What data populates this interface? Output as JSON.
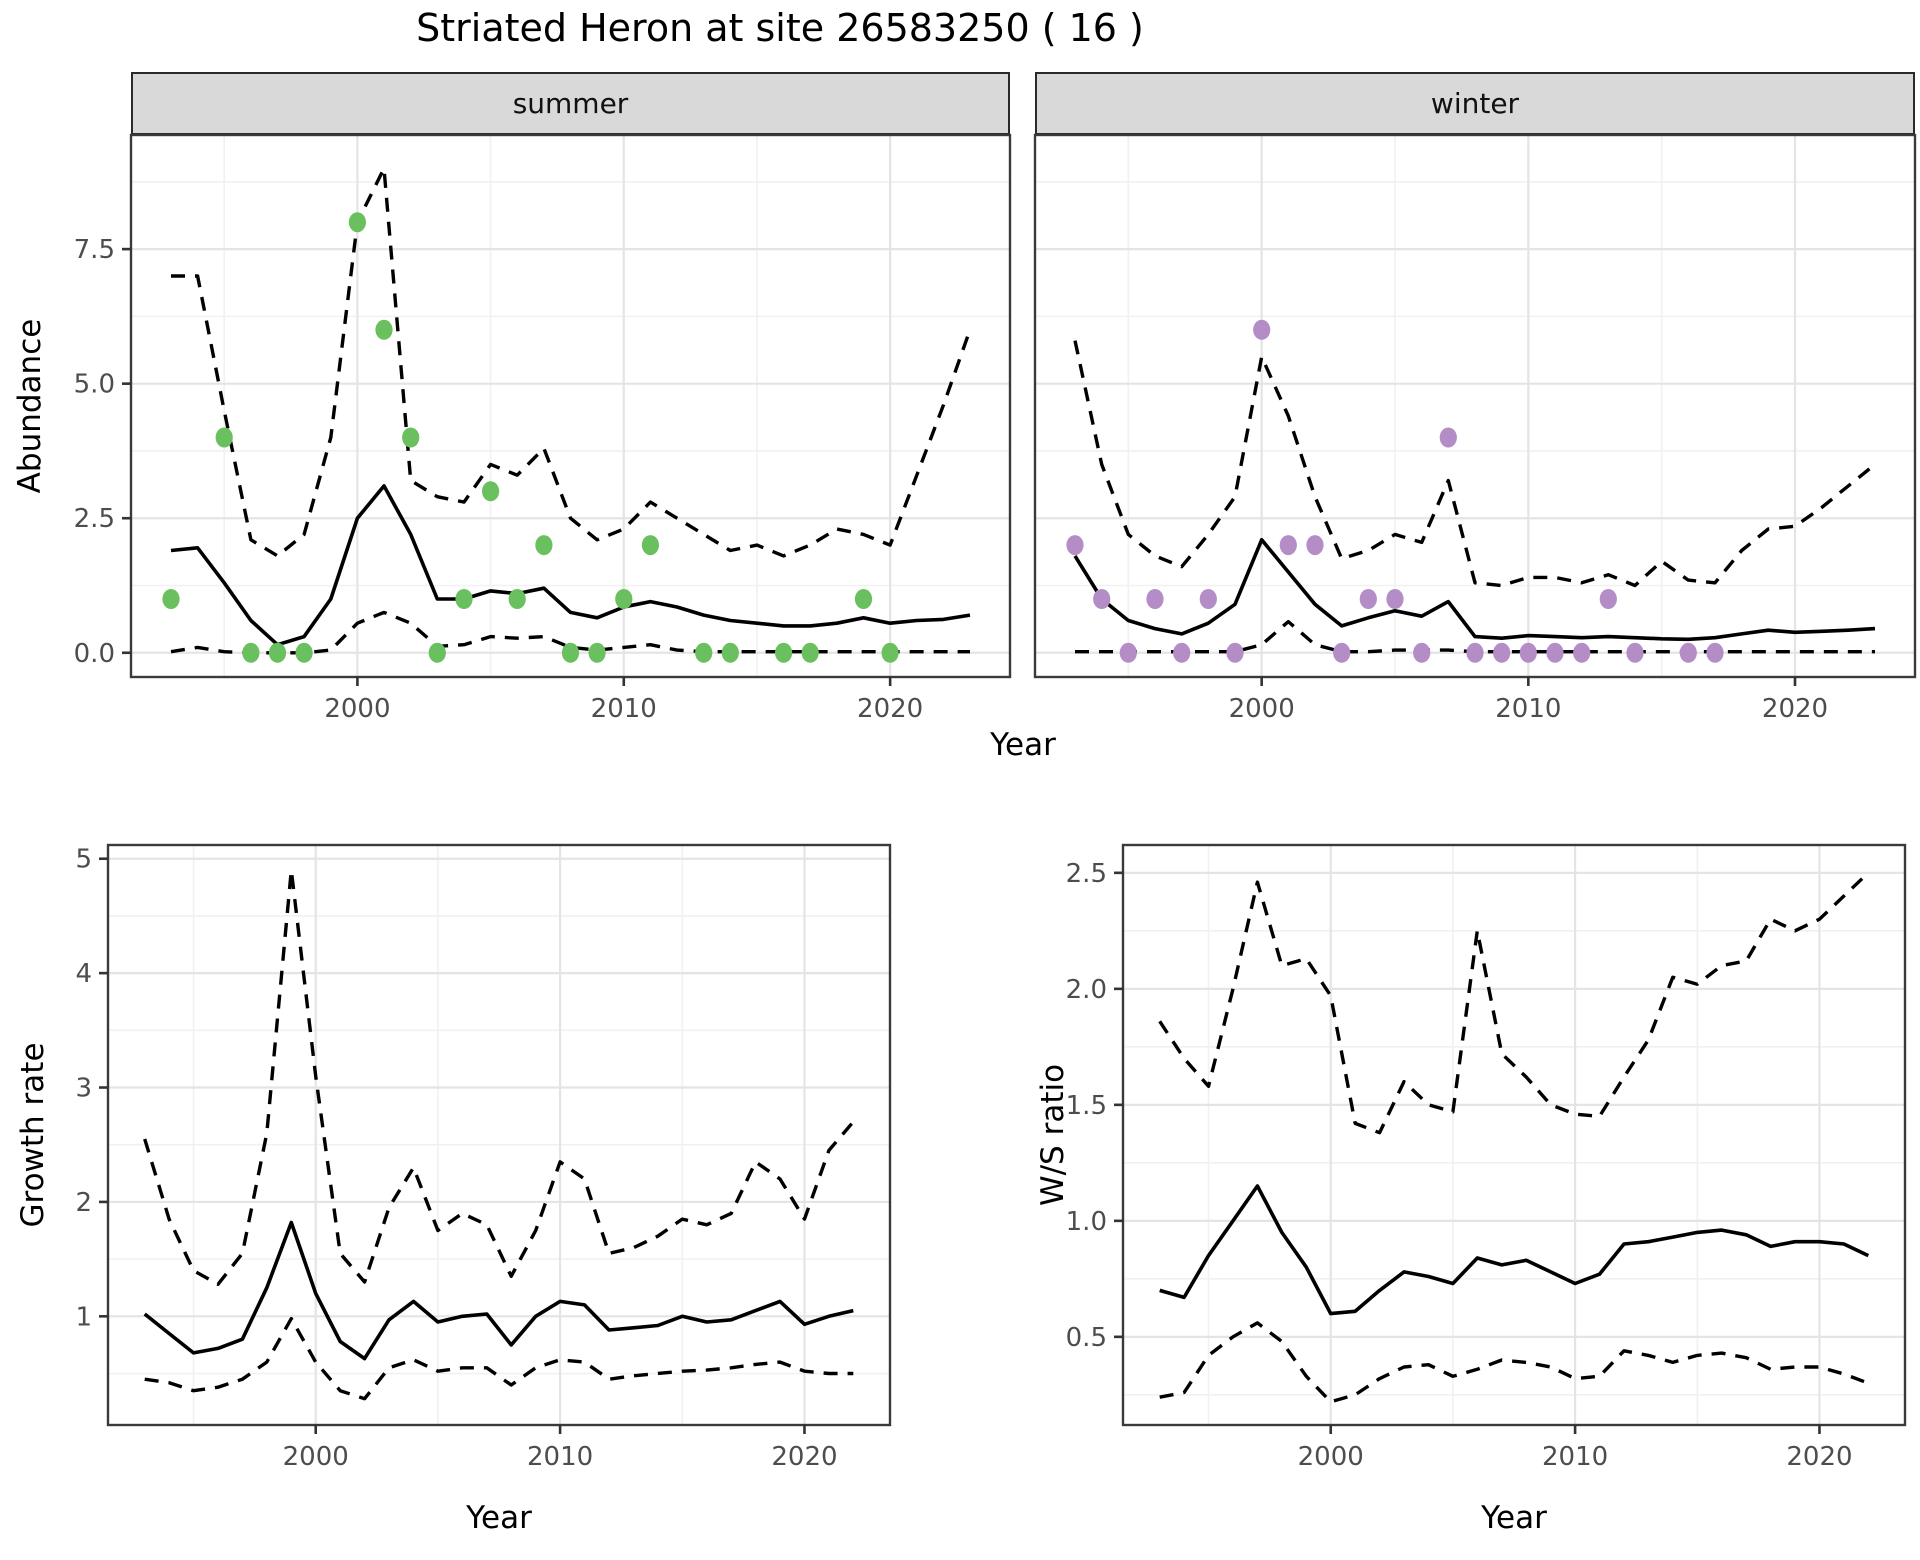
{
  "title": "Striated Heron at site 26583250 ( 16 )",
  "facets": [
    {
      "label": "summer"
    },
    {
      "label": "winter"
    }
  ],
  "axes": {
    "abundance": "Abundance",
    "year": "Year",
    "growth": "Growth rate",
    "ws": "W/S ratio"
  },
  "colors": {
    "summer_point": "#6abf5e",
    "winter_point": "#b48cc6",
    "line": "#000000",
    "strip_bg": "#d9d9d9",
    "panel_bg": "#ffffff",
    "grid_major": "#e4e4e4",
    "grid_minor": "#f1f1f1",
    "panel_border": "#3a3a3a",
    "tick_mark": "#333333",
    "tick_text": "#4d4d4d"
  },
  "chart_data": [
    {
      "id": "abundance_summer",
      "type": "line",
      "facet": "summer",
      "ylabel": "Abundance",
      "xlabel": "Year",
      "x": [
        1993,
        1994,
        1995,
        1996,
        1997,
        1998,
        1999,
        2000,
        2001,
        2002,
        2003,
        2004,
        2005,
        2006,
        2007,
        2008,
        2009,
        2010,
        2011,
        2012,
        2013,
        2014,
        2015,
        2016,
        2017,
        2018,
        2019,
        2020,
        2021,
        2022,
        2023
      ],
      "observed": [
        1,
        null,
        4,
        0,
        0,
        0,
        null,
        8,
        6,
        4,
        0,
        1,
        3,
        1,
        2,
        0,
        0,
        1,
        2,
        null,
        0,
        0,
        null,
        0,
        0,
        null,
        1,
        0,
        null,
        null,
        null
      ],
      "median": [
        1.9,
        1.95,
        1.3,
        0.6,
        0.15,
        0.3,
        1.0,
        2.5,
        3.1,
        2.2,
        1.0,
        1.0,
        1.15,
        1.1,
        1.2,
        0.75,
        0.65,
        0.85,
        0.95,
        0.85,
        0.7,
        0.6,
        0.55,
        0.5,
        0.5,
        0.55,
        0.65,
        0.55,
        0.6,
        0.62,
        0.7
      ],
      "ci_upper": [
        7.0,
        7.0,
        4.5,
        2.1,
        1.8,
        2.2,
        4.0,
        8.0,
        9.0,
        3.2,
        2.9,
        2.8,
        3.5,
        3.3,
        3.8,
        2.5,
        2.1,
        2.3,
        2.8,
        2.5,
        2.2,
        1.9,
        2.0,
        1.8,
        2.0,
        2.3,
        2.2,
        2.0,
        3.3,
        4.6,
        6.0
      ],
      "ci_lower": [
        0.02,
        0.1,
        0.02,
        0.0,
        0.0,
        0.0,
        0.05,
        0.55,
        0.75,
        0.55,
        0.12,
        0.15,
        0.3,
        0.27,
        0.3,
        0.1,
        0.05,
        0.1,
        0.15,
        0.05,
        0.02,
        0.02,
        0.02,
        0.02,
        0.02,
        0.02,
        0.02,
        0.02,
        0.02,
        0.02,
        0.02
      ],
      "xlim": [
        1991.5,
        2024.5
      ],
      "ylim": [
        -0.45,
        9.62
      ],
      "xtick_values": [
        2000,
        2010,
        2020
      ],
      "xtick_labels": [
        "2000",
        "2010",
        "2020"
      ],
      "xticks_minor": [
        1995,
        2005,
        2015
      ],
      "ytick_values": [
        0,
        2.5,
        5,
        7.5
      ],
      "ytick_labels": [
        "0.0",
        "2.5",
        "5.0",
        "7.5"
      ],
      "yticks_minor": [
        1.25,
        3.75,
        6.25,
        8.75
      ],
      "show_yaxis": true,
      "point_color": "#6abf5e"
    },
    {
      "id": "abundance_winter",
      "type": "line",
      "facet": "winter",
      "ylabel": "Abundance",
      "xlabel": "Year",
      "x": [
        1993,
        1994,
        1995,
        1996,
        1997,
        1998,
        1999,
        2000,
        2001,
        2002,
        2003,
        2004,
        2005,
        2006,
        2007,
        2008,
        2009,
        2010,
        2011,
        2012,
        2013,
        2014,
        2015,
        2016,
        2017,
        2018,
        2019,
        2020,
        2021,
        2022,
        2023
      ],
      "observed": [
        2,
        1,
        0,
        1,
        0,
        1,
        0,
        6,
        2,
        2,
        0,
        1,
        1,
        0,
        4,
        0,
        0,
        0,
        0,
        0,
        1,
        0,
        null,
        0,
        0,
        null,
        null,
        null,
        null,
        null,
        null
      ],
      "median": [
        1.8,
        1.0,
        0.6,
        0.45,
        0.35,
        0.55,
        0.9,
        2.1,
        1.5,
        0.9,
        0.5,
        0.65,
        0.78,
        0.68,
        0.95,
        0.3,
        0.27,
        0.32,
        0.3,
        0.28,
        0.3,
        0.28,
        0.26,
        0.25,
        0.28,
        0.35,
        0.42,
        0.38,
        0.4,
        0.42,
        0.45
      ],
      "ci_upper": [
        5.8,
        3.5,
        2.2,
        1.8,
        1.6,
        2.2,
        2.9,
        5.5,
        4.4,
        2.9,
        1.75,
        1.9,
        2.2,
        2.05,
        3.2,
        1.3,
        1.25,
        1.4,
        1.4,
        1.3,
        1.45,
        1.25,
        1.7,
        1.35,
        1.3,
        1.9,
        2.3,
        2.35,
        2.7,
        3.1,
        3.5
      ],
      "ci_lower": [
        0.02,
        0.02,
        0.02,
        0.02,
        0.02,
        0.02,
        0.02,
        0.15,
        0.58,
        0.15,
        0.02,
        0.02,
        0.05,
        0.05,
        0.05,
        0.02,
        0.02,
        0.02,
        0.02,
        0.02,
        0.02,
        0.02,
        0.02,
        0.02,
        0.02,
        0.02,
        0.02,
        0.02,
        0.02,
        0.02,
        0.02
      ],
      "xlim": [
        1991.5,
        2024.5
      ],
      "ylim": [
        -0.45,
        9.62
      ],
      "xtick_values": [
        2000,
        2010,
        2020
      ],
      "xtick_labels": [
        "2000",
        "2010",
        "2020"
      ],
      "xticks_minor": [
        1995,
        2005,
        2015
      ],
      "ytick_values": [
        0,
        2.5,
        5,
        7.5
      ],
      "ytick_labels": [
        "0.0",
        "2.5",
        "5.0",
        "7.5"
      ],
      "yticks_minor": [
        1.25,
        3.75,
        6.25,
        8.75
      ],
      "show_yaxis": false,
      "point_color": "#b48cc6"
    },
    {
      "id": "growth_rate",
      "type": "line",
      "facet": null,
      "ylabel": "Growth rate",
      "xlabel": "Year",
      "x": [
        1993,
        1994,
        1995,
        1996,
        1997,
        1998,
        1999,
        2000,
        2001,
        2002,
        2003,
        2004,
        2005,
        2006,
        2007,
        2008,
        2009,
        2010,
        2011,
        2012,
        2013,
        2014,
        2015,
        2016,
        2017,
        2018,
        2019,
        2020,
        2021,
        2022
      ],
      "observed": null,
      "median": [
        1.02,
        0.85,
        0.68,
        0.72,
        0.8,
        1.25,
        1.82,
        1.2,
        0.78,
        0.63,
        0.97,
        1.13,
        0.95,
        1.0,
        1.02,
        0.75,
        1.0,
        1.13,
        1.1,
        0.88,
        0.9,
        0.92,
        1.0,
        0.95,
        0.97,
        1.05,
        1.13,
        0.93,
        1.0,
        1.05
      ],
      "ci_upper": [
        2.55,
        1.85,
        1.4,
        1.28,
        1.55,
        2.6,
        4.9,
        3.1,
        1.55,
        1.3,
        1.95,
        2.3,
        1.75,
        1.9,
        1.8,
        1.35,
        1.75,
        2.35,
        2.2,
        1.55,
        1.6,
        1.7,
        1.85,
        1.8,
        1.9,
        2.35,
        2.2,
        1.85,
        2.45,
        2.7
      ],
      "ci_lower": [
        0.45,
        0.42,
        0.35,
        0.38,
        0.45,
        0.6,
        0.98,
        0.6,
        0.35,
        0.28,
        0.55,
        0.62,
        0.52,
        0.55,
        0.55,
        0.4,
        0.55,
        0.62,
        0.6,
        0.45,
        0.48,
        0.5,
        0.52,
        0.53,
        0.55,
        0.58,
        0.6,
        0.52,
        0.5,
        0.5
      ],
      "xlim": [
        1991.5,
        2023.5
      ],
      "ylim": [
        0.05,
        5.12
      ],
      "xtick_values": [
        2000,
        2010,
        2020
      ],
      "xtick_labels": [
        "2000",
        "2010",
        "2020"
      ],
      "xticks_minor": [
        1995,
        2005,
        2015
      ],
      "ytick_values": [
        1,
        2,
        3,
        4,
        5
      ],
      "ytick_labels": [
        "1",
        "2",
        "3",
        "4",
        "5"
      ],
      "yticks_minor": [
        0.5,
        1.5,
        2.5,
        3.5,
        4.5
      ],
      "show_yaxis": true,
      "point_color": null
    },
    {
      "id": "ws_ratio",
      "type": "line",
      "facet": null,
      "ylabel": "W/S ratio",
      "xlabel": "Year",
      "x": [
        1993,
        1994,
        1995,
        1996,
        1997,
        1998,
        1999,
        2000,
        2001,
        2002,
        2003,
        2004,
        2005,
        2006,
        2007,
        2008,
        2009,
        2010,
        2011,
        2012,
        2013,
        2014,
        2015,
        2016,
        2017,
        2018,
        2019,
        2020,
        2021,
        2022
      ],
      "observed": null,
      "median": [
        0.7,
        0.67,
        0.85,
        1.0,
        1.15,
        0.95,
        0.8,
        0.6,
        0.61,
        0.7,
        0.78,
        0.76,
        0.73,
        0.84,
        0.81,
        0.83,
        0.78,
        0.73,
        0.77,
        0.9,
        0.91,
        0.93,
        0.95,
        0.96,
        0.94,
        0.89,
        0.91,
        0.91,
        0.9,
        0.85
      ],
      "ci_upper": [
        1.86,
        1.7,
        1.58,
        2.0,
        2.46,
        2.1,
        2.13,
        1.97,
        1.42,
        1.38,
        1.6,
        1.5,
        1.47,
        2.25,
        1.72,
        1.62,
        1.5,
        1.46,
        1.45,
        1.62,
        1.78,
        2.05,
        2.02,
        2.1,
        2.12,
        2.3,
        2.25,
        2.3,
        2.4,
        2.5
      ],
      "ci_lower": [
        0.24,
        0.26,
        0.42,
        0.5,
        0.56,
        0.48,
        0.33,
        0.22,
        0.25,
        0.32,
        0.37,
        0.38,
        0.33,
        0.36,
        0.4,
        0.39,
        0.37,
        0.32,
        0.33,
        0.44,
        0.42,
        0.39,
        0.42,
        0.43,
        0.41,
        0.36,
        0.37,
        0.37,
        0.34,
        0.3
      ],
      "xlim": [
        1991.5,
        2023.5
      ],
      "ylim": [
        0.12,
        2.62
      ],
      "xtick_values": [
        2000,
        2010,
        2020
      ],
      "xtick_labels": [
        "2000",
        "2010",
        "2020"
      ],
      "xticks_minor": [
        1995,
        2005,
        2015
      ],
      "ytick_values": [
        0.5,
        1.0,
        1.5,
        2.0,
        2.5
      ],
      "ytick_labels": [
        "0.5",
        "1.0",
        "1.5",
        "2.0",
        "2.5"
      ],
      "yticks_minor": [
        0.25,
        0.75,
        1.25,
        1.75,
        2.25
      ],
      "show_yaxis": true,
      "point_color": null
    }
  ]
}
